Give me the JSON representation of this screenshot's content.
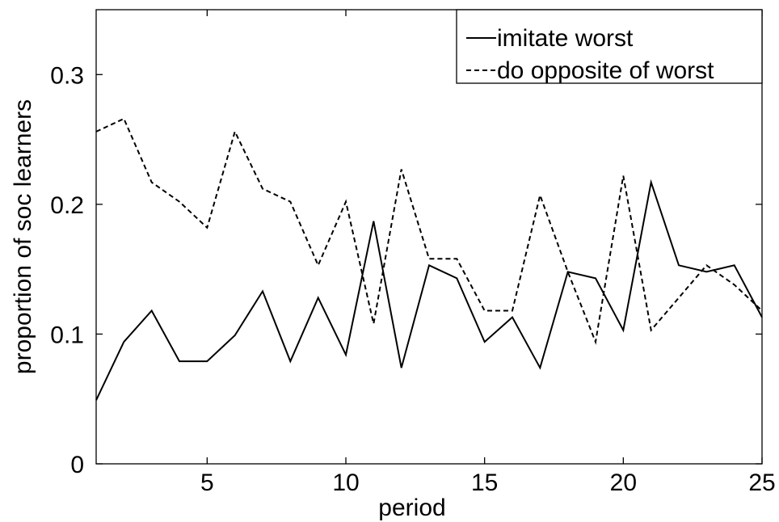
{
  "chart_data": {
    "type": "line",
    "title": "",
    "xlabel": "period",
    "ylabel": "proportion of soc learners",
    "xlim": [
      1,
      25
    ],
    "ylim": [
      0,
      0.35
    ],
    "x_ticks": [
      5,
      10,
      15,
      20,
      25
    ],
    "y_ticks": [
      0,
      0.1,
      0.2,
      0.3
    ],
    "x_tick_labels": [
      "5",
      "10",
      "15",
      "20",
      "25"
    ],
    "y_tick_labels": [
      "0",
      "0.1",
      "0.2",
      "0.3"
    ],
    "grid": false,
    "legend_position": "top-right",
    "x": [
      1,
      2,
      3,
      4,
      5,
      6,
      7,
      8,
      9,
      10,
      11,
      12,
      13,
      14,
      15,
      16,
      17,
      18,
      19,
      20,
      21,
      22,
      23,
      24,
      25
    ],
    "series": [
      {
        "name": "imitate worst",
        "style": "solid",
        "color": "#000000",
        "values": [
          0.049,
          0.094,
          0.118,
          0.079,
          0.079,
          0.099,
          0.133,
          0.079,
          0.128,
          0.084,
          0.187,
          0.074,
          0.153,
          0.143,
          0.094,
          0.113,
          0.074,
          0.148,
          0.143,
          0.103,
          0.217,
          0.153,
          0.148,
          0.153,
          0.113
        ]
      },
      {
        "name": "do opposite of worst",
        "style": "dashed",
        "color": "#000000",
        "values": [
          0.256,
          0.266,
          0.217,
          0.202,
          0.182,
          0.256,
          0.212,
          0.202,
          0.153,
          0.202,
          0.108,
          0.227,
          0.158,
          0.158,
          0.118,
          0.118,
          0.207,
          0.148,
          0.094,
          0.222,
          0.103,
          0.128,
          0.153,
          0.138,
          0.118
        ]
      }
    ]
  }
}
